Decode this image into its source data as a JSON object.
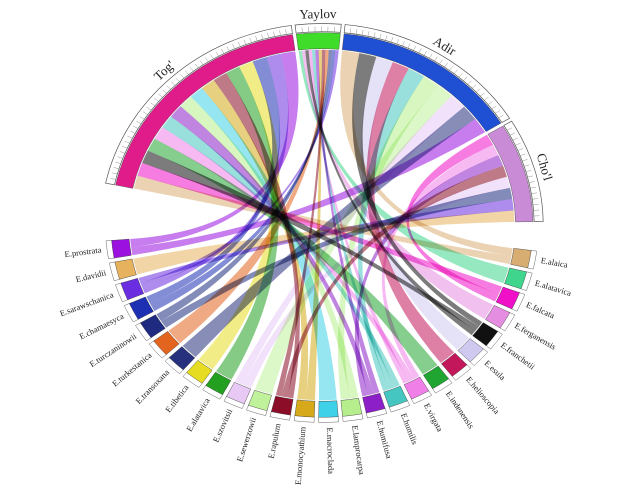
{
  "chord": {
    "regions": [
      {
        "name": "Tog'",
        "color": "#e01c8a"
      },
      {
        "name": "Yaylov",
        "color": "#3fdc2a"
      },
      {
        "name": "Adir",
        "color": "#1f4fd3"
      },
      {
        "name": "Cho'l",
        "color": "#c98ad6"
      }
    ],
    "species": [
      {
        "name": "E.alaica",
        "color": "#d8ad72"
      },
      {
        "name": "E.alatavica",
        "color": "#40d58d"
      },
      {
        "name": "E.falcata",
        "color": "#f010c8"
      },
      {
        "name": "E.ferganensis",
        "color": "#e58de0"
      },
      {
        "name": "E.franchetii",
        "color": "#111111"
      },
      {
        "name": "E.esula",
        "color": "#cfc9f0"
      },
      {
        "name": "E.helioscopia",
        "color": "#c2185b"
      },
      {
        "name": "E.indenensis",
        "color": "#21a532"
      },
      {
        "name": "E.virgata",
        "color": "#f07fe8"
      },
      {
        "name": "E.humilis",
        "color": "#46c6c0"
      },
      {
        "name": "E.humifusa",
        "color": "#8d1fc9"
      },
      {
        "name": "E.lamprocarpa",
        "color": "#b6ee8d"
      },
      {
        "name": "E.macroclada",
        "color": "#3fd1e8"
      },
      {
        "name": "E.monocyathium",
        "color": "#d6a91a"
      },
      {
        "name": "E.rapulum",
        "color": "#8b0d27"
      },
      {
        "name": "E.sewerzowii",
        "color": "#bff29a"
      },
      {
        "name": "E.szovitsii",
        "color": "#e8c9f5"
      },
      {
        "name": "E.alatavica",
        "color": "#23a020"
      },
      {
        "name": "E.tibetica",
        "color": "#e6dd22"
      },
      {
        "name": "E.transoxana",
        "color": "#26307d"
      },
      {
        "name": "E.turkestanica",
        "color": "#e3641e"
      },
      {
        "name": "E.turczaninowii",
        "color": "#1e2b80"
      },
      {
        "name": "E.chamaesyca",
        "color": "#1d2fb3"
      },
      {
        "name": "E.sarawschanica",
        "color": "#6a2ee0"
      },
      {
        "name": "E.davidii",
        "color": "#e6b25e"
      },
      {
        "name": "E.prostrata",
        "color": "#9b12e0"
      }
    ]
  }
}
